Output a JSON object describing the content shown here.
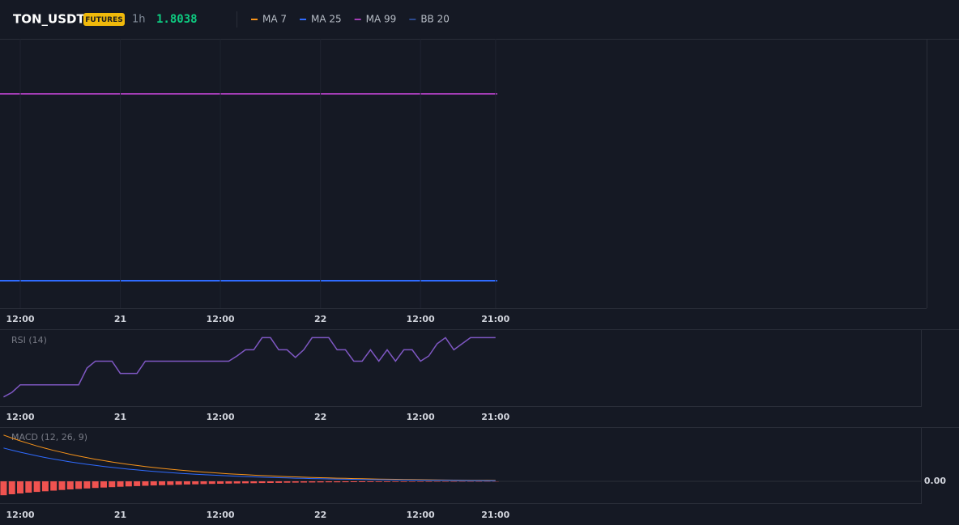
{
  "header": {
    "symbol": "TON_USDT",
    "badge": "FUTURES",
    "interval": "1h",
    "price": "1.8038",
    "legend": [
      {
        "name": "MA 7",
        "color": "#f7931a"
      },
      {
        "name": "MA 25",
        "color": "#2f6bff"
      },
      {
        "name": "MA 99",
        "color": "#a33db5"
      },
      {
        "name": "BB 20",
        "color": "#2c4a8f"
      }
    ]
  },
  "chart_data": [
    {
      "type": "line",
      "xlim": [
        -2.43,
        108.6
      ],
      "xticks": [
        {
          "value": 0,
          "label": "12:00"
        },
        {
          "value": 12,
          "label": "21"
        },
        {
          "value": 24,
          "label": "12:00"
        },
        {
          "value": 36,
          "label": "22"
        },
        {
          "value": 48,
          "label": "12:00"
        },
        {
          "value": 57,
          "label": "21:00"
        }
      ]
    },
    {
      "type": "line",
      "title": "RSI (14)",
      "xlim": [
        -2.43,
        108.6
      ],
      "ylim": [
        0,
        100
      ],
      "xticks": [
        {
          "value": 0,
          "label": "12:00"
        },
        {
          "value": 12,
          "label": "21"
        },
        {
          "value": 24,
          "label": "12:00"
        },
        {
          "value": 36,
          "label": "22"
        },
        {
          "value": 48,
          "label": "12:00"
        },
        {
          "value": 57,
          "label": "21:00"
        }
      ],
      "x": [
        -2,
        -1,
        0,
        1,
        2,
        3,
        4,
        5,
        6,
        7,
        8,
        9,
        10,
        11,
        12,
        13,
        14,
        15,
        16,
        17,
        18,
        19,
        20,
        21,
        22,
        23,
        24,
        25,
        26,
        27,
        28,
        29,
        30,
        31,
        32,
        33,
        34,
        35,
        36,
        37,
        38,
        39,
        40,
        41,
        42,
        43,
        44,
        45,
        46,
        47,
        48,
        49,
        50,
        51,
        52,
        53,
        54,
        55,
        56,
        57
      ],
      "series": [
        {
          "name": "RSI",
          "color": "#7e57c2",
          "values": [
            12,
            18,
            28,
            28,
            28,
            28,
            28,
            28,
            28,
            28,
            50,
            59,
            59,
            59,
            43,
            43,
            43,
            59,
            59,
            59,
            59,
            59,
            59,
            59,
            59,
            59,
            59,
            59,
            66,
            74,
            74,
            90,
            90,
            74,
            74,
            64,
            74,
            90,
            90,
            90,
            74,
            74,
            59,
            59,
            74,
            59,
            74,
            59,
            74,
            74,
            59,
            66,
            82,
            90,
            74,
            82,
            90,
            90,
            90,
            90
          ]
        }
      ]
    },
    {
      "type": "macd",
      "title": "MACD (12, 26, 9)",
      "xlim": [
        -2.43,
        108.6
      ],
      "ylim": [
        -27,
        67
      ],
      "yticks": [
        {
          "value": 0,
          "label": "0.00"
        }
      ],
      "xticks": [
        {
          "value": 0,
          "label": "12:00"
        },
        {
          "value": 12,
          "label": "21"
        },
        {
          "value": 24,
          "label": "12:00"
        },
        {
          "value": 36,
          "label": "22"
        },
        {
          "value": 48,
          "label": "12:00"
        },
        {
          "value": 57,
          "label": "21:00"
        }
      ],
      "x": [
        -2,
        -1,
        0,
        1,
        2,
        3,
        4,
        5,
        6,
        7,
        8,
        9,
        10,
        11,
        12,
        13,
        14,
        15,
        16,
        17,
        18,
        19,
        20,
        21,
        22,
        23,
        24,
        25,
        26,
        27,
        28,
        29,
        30,
        31,
        32,
        33,
        34,
        35,
        36,
        37,
        38,
        39,
        40,
        41,
        42,
        43,
        44,
        45,
        46,
        47,
        48,
        49,
        50,
        51,
        52,
        53,
        54,
        55,
        56,
        57
      ],
      "series": [
        {
          "name": "MACD",
          "color": "#f7931a",
          "values": [
            57.2,
            53.5,
            50,
            46.8,
            43.7,
            40.9,
            38.2,
            35.8,
            33.4,
            31.3,
            29.2,
            27.3,
            25.6,
            23.9,
            22.4,
            20.9,
            19.6,
            18.3,
            17.1,
            16,
            15,
            14,
            13.1,
            12.2,
            11.4,
            10.7,
            10,
            9.3,
            8.7,
            8.2,
            7.6,
            7.1,
            6.7,
            6.2,
            5.8,
            5.5,
            5.1,
            4.8,
            4.5,
            4.2,
            3.9,
            3.7,
            3.4,
            3.2,
            3,
            2.8,
            2.6,
            2.5,
            2.3,
            2.1,
            2,
            1.9,
            1.8,
            1.6,
            1.5,
            1.4,
            1.3,
            1.3,
            1.2,
            1.1
          ]
        },
        {
          "name": "Signal",
          "color": "#2f6bff",
          "values": [
            41.2,
            38.5,
            36,
            33.7,
            31.5,
            29.4,
            27.5,
            25.7,
            24,
            22.5,
            21,
            19.7,
            18.4,
            17.2,
            16.1,
            15,
            14.1,
            13.1,
            12.3,
            11.5,
            10.8,
            10,
            9.4,
            8.8,
            8.2,
            7.7,
            7.2,
            6.7,
            6.3,
            5.9,
            5.5,
            5.1,
            4.8,
            4.5,
            4.2,
            3.9,
            3.7,
            3.4,
            3.2,
            3,
            2.8,
            2.6,
            2.5,
            2.3,
            2.1,
            2,
            1.9,
            1.8,
            1.6,
            1.5,
            1.4,
            1.3,
            1.3,
            1.2,
            1.1,
            1,
            0.9,
            0.9,
            0.8,
            0.8
          ]
        },
        {
          "name": "Histogram",
          "color": "#f05350",
          "values": [
            -17.2,
            -16,
            -15,
            -14,
            -13.1,
            -12.3,
            -11.5,
            -10.7,
            -10,
            -9.4,
            -8.8,
            -8.2,
            -7.7,
            -7.2,
            -6.7,
            -6.3,
            -5.9,
            -5.5,
            -5.1,
            -4.8,
            -4.5,
            -4.2,
            -3.9,
            -3.7,
            -3.4,
            -3.2,
            -3,
            -2.8,
            -2.6,
            -2.4,
            -2.3,
            -2.1,
            -2,
            -1.9,
            -1.7,
            -1.6,
            -1.5,
            -1.4,
            -1.3,
            -1.2,
            -1.2,
            -1.1,
            -1,
            -1,
            -0.9,
            -0.8,
            -0.8,
            -0.7,
            -0.7,
            -0.6,
            -0.6,
            -0.6,
            -0.5,
            -0.5,
            -0.5,
            -0.4,
            -0.4,
            -0.4,
            -0.3,
            -0.3
          ]
        }
      ]
    }
  ]
}
